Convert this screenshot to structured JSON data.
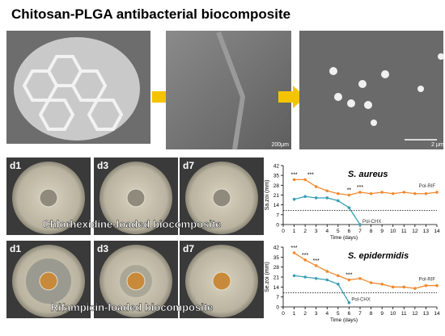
{
  "title": "Chitosan-PLGA antibacterial biocomposite",
  "photos": {
    "scale_bar_1": "200μm",
    "scale_bar_2": "2 μm"
  },
  "plates": {
    "rows": [
      {
        "caption": "Chlorhexidine-loaded biocomposite",
        "days": [
          "d1",
          "d3",
          "d7"
        ]
      },
      {
        "caption": "Rifampicin-loaded biocomposite",
        "days": [
          "d1",
          "d3",
          "d7"
        ]
      }
    ]
  },
  "chart_data": [
    {
      "type": "line",
      "title": "S. aureus",
      "x_label": "Time (days)",
      "y_label": "Sa.zoi (mm)",
      "xlim": [
        0,
        14
      ],
      "xticks": [
        0,
        1,
        2,
        3,
        4,
        5,
        6,
        7,
        8,
        9,
        10,
        11,
        12,
        13,
        14
      ],
      "ylim": [
        0,
        42
      ],
      "yticks": [
        0,
        7,
        14,
        21,
        28,
        35,
        42
      ],
      "reference_line": 10,
      "series": [
        {
          "name": "Pol-RIF",
          "color": "#f08a30",
          "x": [
            1,
            2,
            3,
            4,
            5,
            6,
            7,
            8,
            9,
            10,
            11,
            12,
            13,
            14
          ],
          "values": [
            32,
            32,
            27,
            24,
            22,
            21,
            23,
            22,
            23,
            22,
            23,
            22,
            22,
            23
          ]
        },
        {
          "name": "Pol-CHX",
          "color": "#3a9fb5",
          "x": [
            1,
            2,
            3,
            4,
            5,
            6,
            7
          ],
          "values": [
            18,
            20,
            19,
            19,
            17,
            12,
            0
          ]
        }
      ],
      "annotations": [
        {
          "x": 1,
          "text": "***"
        },
        {
          "x": 2.5,
          "text": "***"
        },
        {
          "x": 6,
          "text": "**"
        },
        {
          "x": 7,
          "text": "***"
        }
      ]
    },
    {
      "type": "line",
      "title": "S. epidermidis",
      "x_label": "Time (days)",
      "y_label": "Se.zoi (mm)",
      "xlim": [
        0,
        14
      ],
      "xticks": [
        0,
        1,
        2,
        3,
        4,
        5,
        6,
        7,
        8,
        9,
        10,
        11,
        12,
        13,
        14
      ],
      "ylim": [
        0,
        42
      ],
      "yticks": [
        0,
        7,
        14,
        21,
        28,
        35,
        42
      ],
      "reference_line": 10,
      "series": [
        {
          "name": "Pol-RIF",
          "color": "#f08a30",
          "x": [
            1,
            2,
            3,
            4,
            5,
            6,
            7,
            8,
            9,
            10,
            11,
            12,
            13,
            14
          ],
          "values": [
            38,
            33,
            29,
            25,
            22,
            19,
            20,
            17,
            16,
            14,
            14,
            13,
            15,
            15
          ]
        },
        {
          "name": "Pol-CHX",
          "color": "#3a9fb5",
          "x": [
            1,
            2,
            3,
            4,
            5,
            6
          ],
          "values": [
            22,
            21,
            20,
            19,
            16,
            3
          ]
        }
      ],
      "annotations": [
        {
          "x": 1,
          "text": "***"
        },
        {
          "x": 2,
          "text": "***"
        },
        {
          "x": 3,
          "text": "***"
        },
        {
          "x": 6,
          "text": "***"
        }
      ]
    }
  ]
}
